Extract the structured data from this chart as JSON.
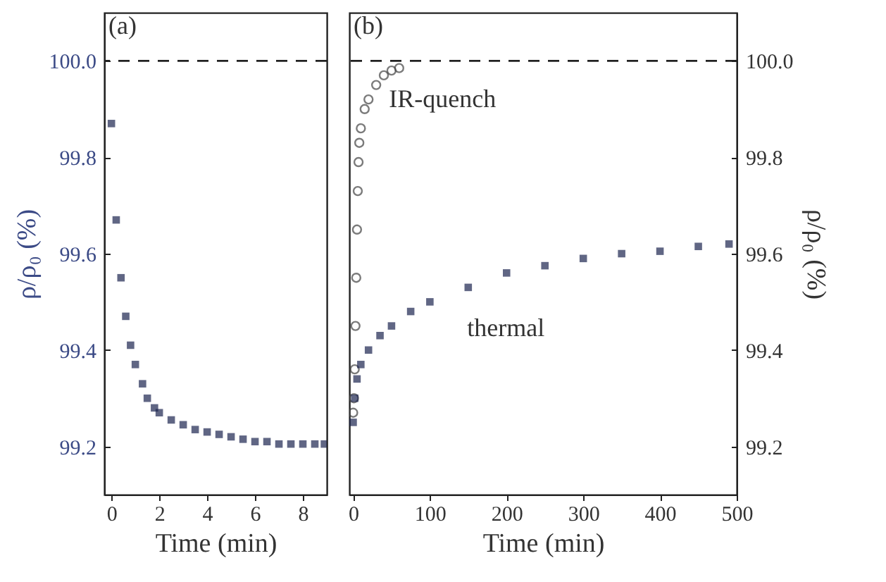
{
  "chart_data": [
    {
      "type": "scatter",
      "xlabel": "Time (min)",
      "ylabel": "ρ/ρ₀ (%)",
      "xlim": [
        -0.3,
        9
      ],
      "xticks": [
        0,
        2,
        4,
        6,
        8
      ],
      "ylim": [
        99.1,
        100.1
      ],
      "yticks": [
        99.2,
        99.4,
        99.6,
        99.8,
        {
          "value": 100,
          "label": "100.0"
        }
      ],
      "annotations": [
        "(a)"
      ],
      "ref_lines": [
        {
          "axis": "y",
          "value": 100,
          "line_style": "dashed",
          "color": "#222222"
        }
      ],
      "series": [
        {
          "color": "#1c2550",
          "marker": "square",
          "x": [
            0,
            0.2,
            0.4,
            0.6,
            0.8,
            1.0,
            1.3,
            1.5,
            1.8,
            2,
            2.5,
            3,
            3.5,
            4,
            4.5,
            5,
            5.5,
            6,
            6.5,
            7,
            7.5,
            8,
            8.5,
            8.9
          ],
          "values": [
            99.87,
            99.67,
            99.55,
            99.47,
            99.41,
            99.37,
            99.33,
            99.3,
            99.28,
            99.27,
            99.255,
            99.245,
            99.235,
            99.23,
            99.225,
            99.22,
            99.215,
            99.21,
            99.21,
            99.205,
            99.205,
            99.205,
            99.205,
            99.205
          ]
        }
      ]
    },
    {
      "type": "scatter",
      "xlabel": "Time (min)",
      "y2label": "ρ/ρ₀ (%)",
      "xlim": [
        -5,
        500
      ],
      "xticks": [
        0,
        100,
        200,
        300,
        400,
        500
      ],
      "y2lim": [
        99.1,
        100.1
      ],
      "y2ticks": [
        99.2,
        99.4,
        99.6,
        99.8,
        {
          "value": 100,
          "label": "100.0"
        }
      ],
      "annotations": [
        "(b)"
      ],
      "ref_lines": [
        {
          "axis": "y2",
          "value": 100,
          "line_style": "dashed",
          "color": "#222222"
        }
      ],
      "series": [
        {
          "name": "IR-quench",
          "axis": "y2",
          "color": "#444444",
          "marker": "circle",
          "x": [
            0,
            1,
            2,
            3,
            4,
            5,
            6,
            7,
            8,
            10,
            15,
            20,
            30,
            40,
            50,
            60
          ],
          "values": [
            99.27,
            99.3,
            99.36,
            99.45,
            99.55,
            99.65,
            99.73,
            99.79,
            99.83,
            99.86,
            99.9,
            99.92,
            99.95,
            99.97,
            99.98,
            99.985
          ]
        },
        {
          "name": "thermal",
          "axis": "y2",
          "color": "#1c2550",
          "marker": "square",
          "x": [
            0,
            2,
            5,
            10,
            20,
            35,
            50,
            75,
            100,
            150,
            200,
            250,
            300,
            350,
            400,
            450,
            490
          ],
          "values": [
            99.25,
            99.3,
            99.34,
            99.37,
            99.4,
            99.43,
            99.45,
            99.48,
            99.5,
            99.53,
            99.56,
            99.575,
            99.59,
            99.6,
            99.605,
            99.615,
            99.62
          ]
        }
      ]
    }
  ]
}
